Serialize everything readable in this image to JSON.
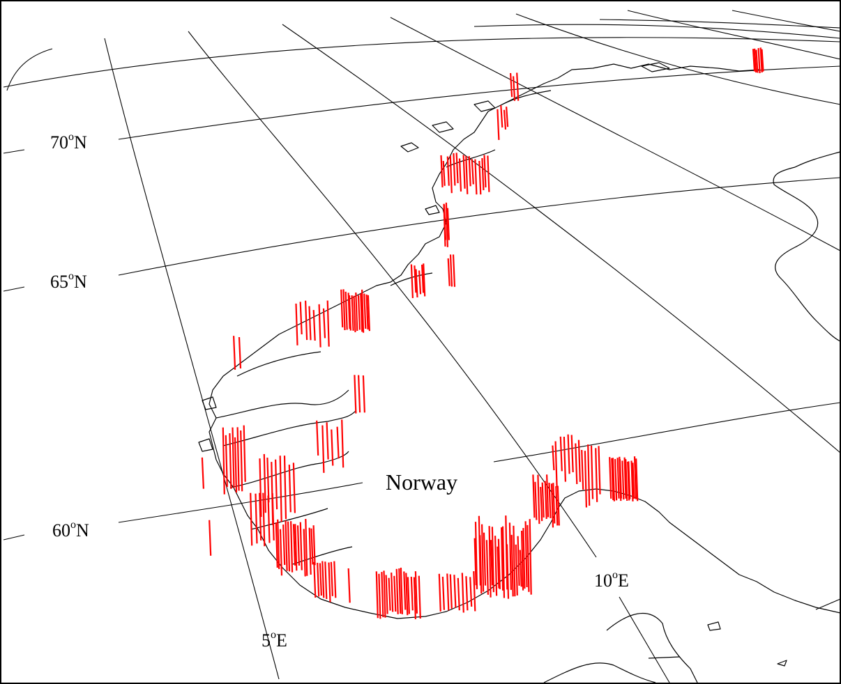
{
  "map": {
    "country_label": "Norway",
    "latitude_labels": [
      {
        "value": "70",
        "degree": "o",
        "hemisphere": "N"
      },
      {
        "value": "65",
        "degree": "o",
        "hemisphere": "N"
      },
      {
        "value": "60",
        "degree": "o",
        "hemisphere": "N"
      }
    ],
    "longitude_labels": [
      {
        "value": "5",
        "degree": "o",
        "hemisphere": "E"
      },
      {
        "value": "10",
        "degree": "o",
        "hemisphere": "E"
      }
    ],
    "colors": {
      "background": "#ffffff",
      "graticule": "#000000",
      "coastline": "#000000",
      "stations": "#ff0000",
      "frame": "#000000"
    }
  }
}
